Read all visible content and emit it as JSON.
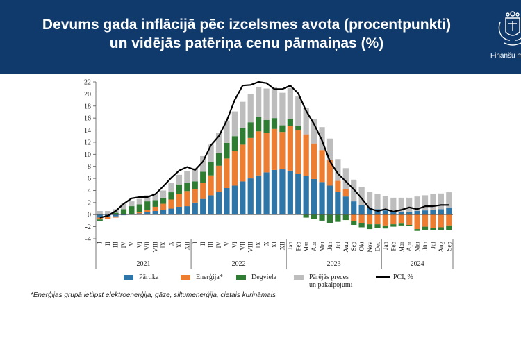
{
  "header": {
    "title_line1": "Devums gada inflācijā pēc izcelsmes avota (procentpunkti)",
    "title_line2": "un vidējās patēriņa cenu pārmaiņas (%)",
    "logo_text": "Finanšu m"
  },
  "footnote": "*Enerģijas grupā ietilpst elektroenerģija, gāze, siltumenerģija, cietais kurināmais",
  "colors": {
    "header_bg": "#0f3a6b",
    "partika": "#2e75a8",
    "energija": "#ed7d31",
    "degviela": "#2e7d32",
    "parejas": "#bdbdbd",
    "pci": "#000000"
  },
  "chart_data": {
    "type": "bar",
    "stacked": true,
    "ylim": [
      -4,
      22
    ],
    "yticks": [
      -4,
      -2,
      0,
      2,
      4,
      6,
      8,
      10,
      12,
      14,
      16,
      18,
      20,
      22
    ],
    "grid": false,
    "legend_position": "bottom",
    "categories": [
      "I",
      "II",
      "III",
      "IV",
      "V",
      "VI",
      "VII",
      "VIII",
      "IX",
      "X",
      "XI",
      "XII",
      "I",
      "II",
      "III",
      "IV",
      "V",
      "VI",
      "VII",
      "VIII",
      "IX",
      "X",
      "XI",
      "XII",
      "Jan",
      "Feb",
      "Mar",
      "Apr",
      "Mai",
      "Jūn",
      "Jūl",
      "Aug",
      "Sep",
      "Okt",
      "Nov",
      "Dec",
      "Jan",
      "Feb",
      "Mar",
      "Apr",
      "Mai",
      "Jūn",
      "Jūl",
      "Aug",
      "Sep"
    ],
    "year_groups": [
      {
        "label": "2021",
        "count": 12
      },
      {
        "label": "2022",
        "count": 12
      },
      {
        "label": "2023",
        "count": 12
      },
      {
        "label": "2024",
        "count": 9
      }
    ],
    "series": [
      {
        "name": "Pārtika",
        "type": "bar",
        "values": [
          -0.5,
          -0.4,
          -0.3,
          -0.1,
          0.1,
          0.2,
          0.4,
          0.6,
          0.8,
          1.0,
          1.3,
          1.4,
          2.0,
          2.6,
          3.2,
          3.8,
          4.4,
          4.8,
          5.5,
          6.0,
          6.5,
          7.0,
          7.4,
          7.5,
          7.3,
          6.8,
          6.4,
          5.9,
          5.4,
          4.8,
          3.8,
          3.0,
          2.2,
          1.6,
          1.2,
          0.9,
          0.7,
          0.5,
          0.4,
          0.5,
          0.6,
          0.7,
          0.8,
          0.9,
          1.1
        ]
      },
      {
        "name": "Enerģija*",
        "type": "bar",
        "values": [
          -0.3,
          -0.3,
          -0.2,
          0.0,
          0.0,
          0.2,
          0.4,
          0.7,
          1.0,
          1.5,
          2.1,
          2.5,
          2.2,
          2.7,
          3.3,
          4.3,
          4.9,
          5.7,
          6.1,
          6.7,
          7.3,
          6.6,
          6.8,
          6.2,
          7.4,
          7.2,
          6.9,
          5.9,
          5.3,
          4.2,
          1.8,
          1.2,
          -1.1,
          -1.4,
          -1.6,
          -1.6,
          -1.8,
          -1.6,
          -1.5,
          -1.7,
          -2.4,
          -2.0,
          -2.2,
          -2.1,
          -1.8
        ]
      },
      {
        "name": "Degviela",
        "type": "bar",
        "values": [
          -0.3,
          0.0,
          0.3,
          0.9,
          1.3,
          1.3,
          1.4,
          1.1,
          1.0,
          1.2,
          1.6,
          1.4,
          1.3,
          1.8,
          2.2,
          2.1,
          2.6,
          2.5,
          2.7,
          2.6,
          2.4,
          2.1,
          1.8,
          1.1,
          1.1,
          0.7,
          -0.5,
          -0.7,
          -1.0,
          -1.4,
          -1.2,
          -0.9,
          -0.6,
          -0.7,
          -0.8,
          -0.6,
          -0.5,
          -0.4,
          -0.3,
          -0.2,
          -0.3,
          -0.5,
          -0.4,
          -0.5,
          -0.8
        ]
      },
      {
        "name": "Pārējās preces\nun pakalpojumi",
        "type": "bar",
        "values": [
          0.6,
          0.6,
          0.6,
          0.9,
          0.8,
          0.9,
          1.0,
          1.1,
          1.2,
          1.5,
          1.6,
          1.9,
          2.2,
          2.6,
          2.9,
          3.3,
          3.7,
          4.1,
          4.4,
          4.7,
          5.0,
          5.2,
          5.1,
          5.4,
          5.2,
          4.9,
          4.4,
          4.0,
          3.8,
          3.6,
          3.6,
          3.5,
          3.6,
          3.0,
          2.6,
          2.5,
          2.4,
          2.3,
          2.4,
          2.3,
          2.4,
          2.5,
          2.6,
          2.6,
          2.6
        ]
      },
      {
        "name": "PCI, %",
        "type": "line",
        "values": [
          -0.5,
          -0.2,
          0.6,
          1.8,
          2.7,
          2.9,
          2.9,
          3.4,
          4.7,
          6.1,
          7.3,
          7.9,
          7.4,
          8.8,
          11.5,
          13.0,
          15.6,
          19.0,
          21.4,
          21.5,
          22.0,
          21.8,
          20.8,
          20.8,
          21.4,
          20.1,
          17.2,
          15.0,
          12.3,
          8.8,
          6.8,
          5.5,
          4.2,
          2.7,
          1.0,
          0.6,
          0.9,
          0.5,
          0.8,
          1.2,
          0.9,
          1.4,
          1.4,
          1.6,
          1.6
        ]
      }
    ]
  }
}
